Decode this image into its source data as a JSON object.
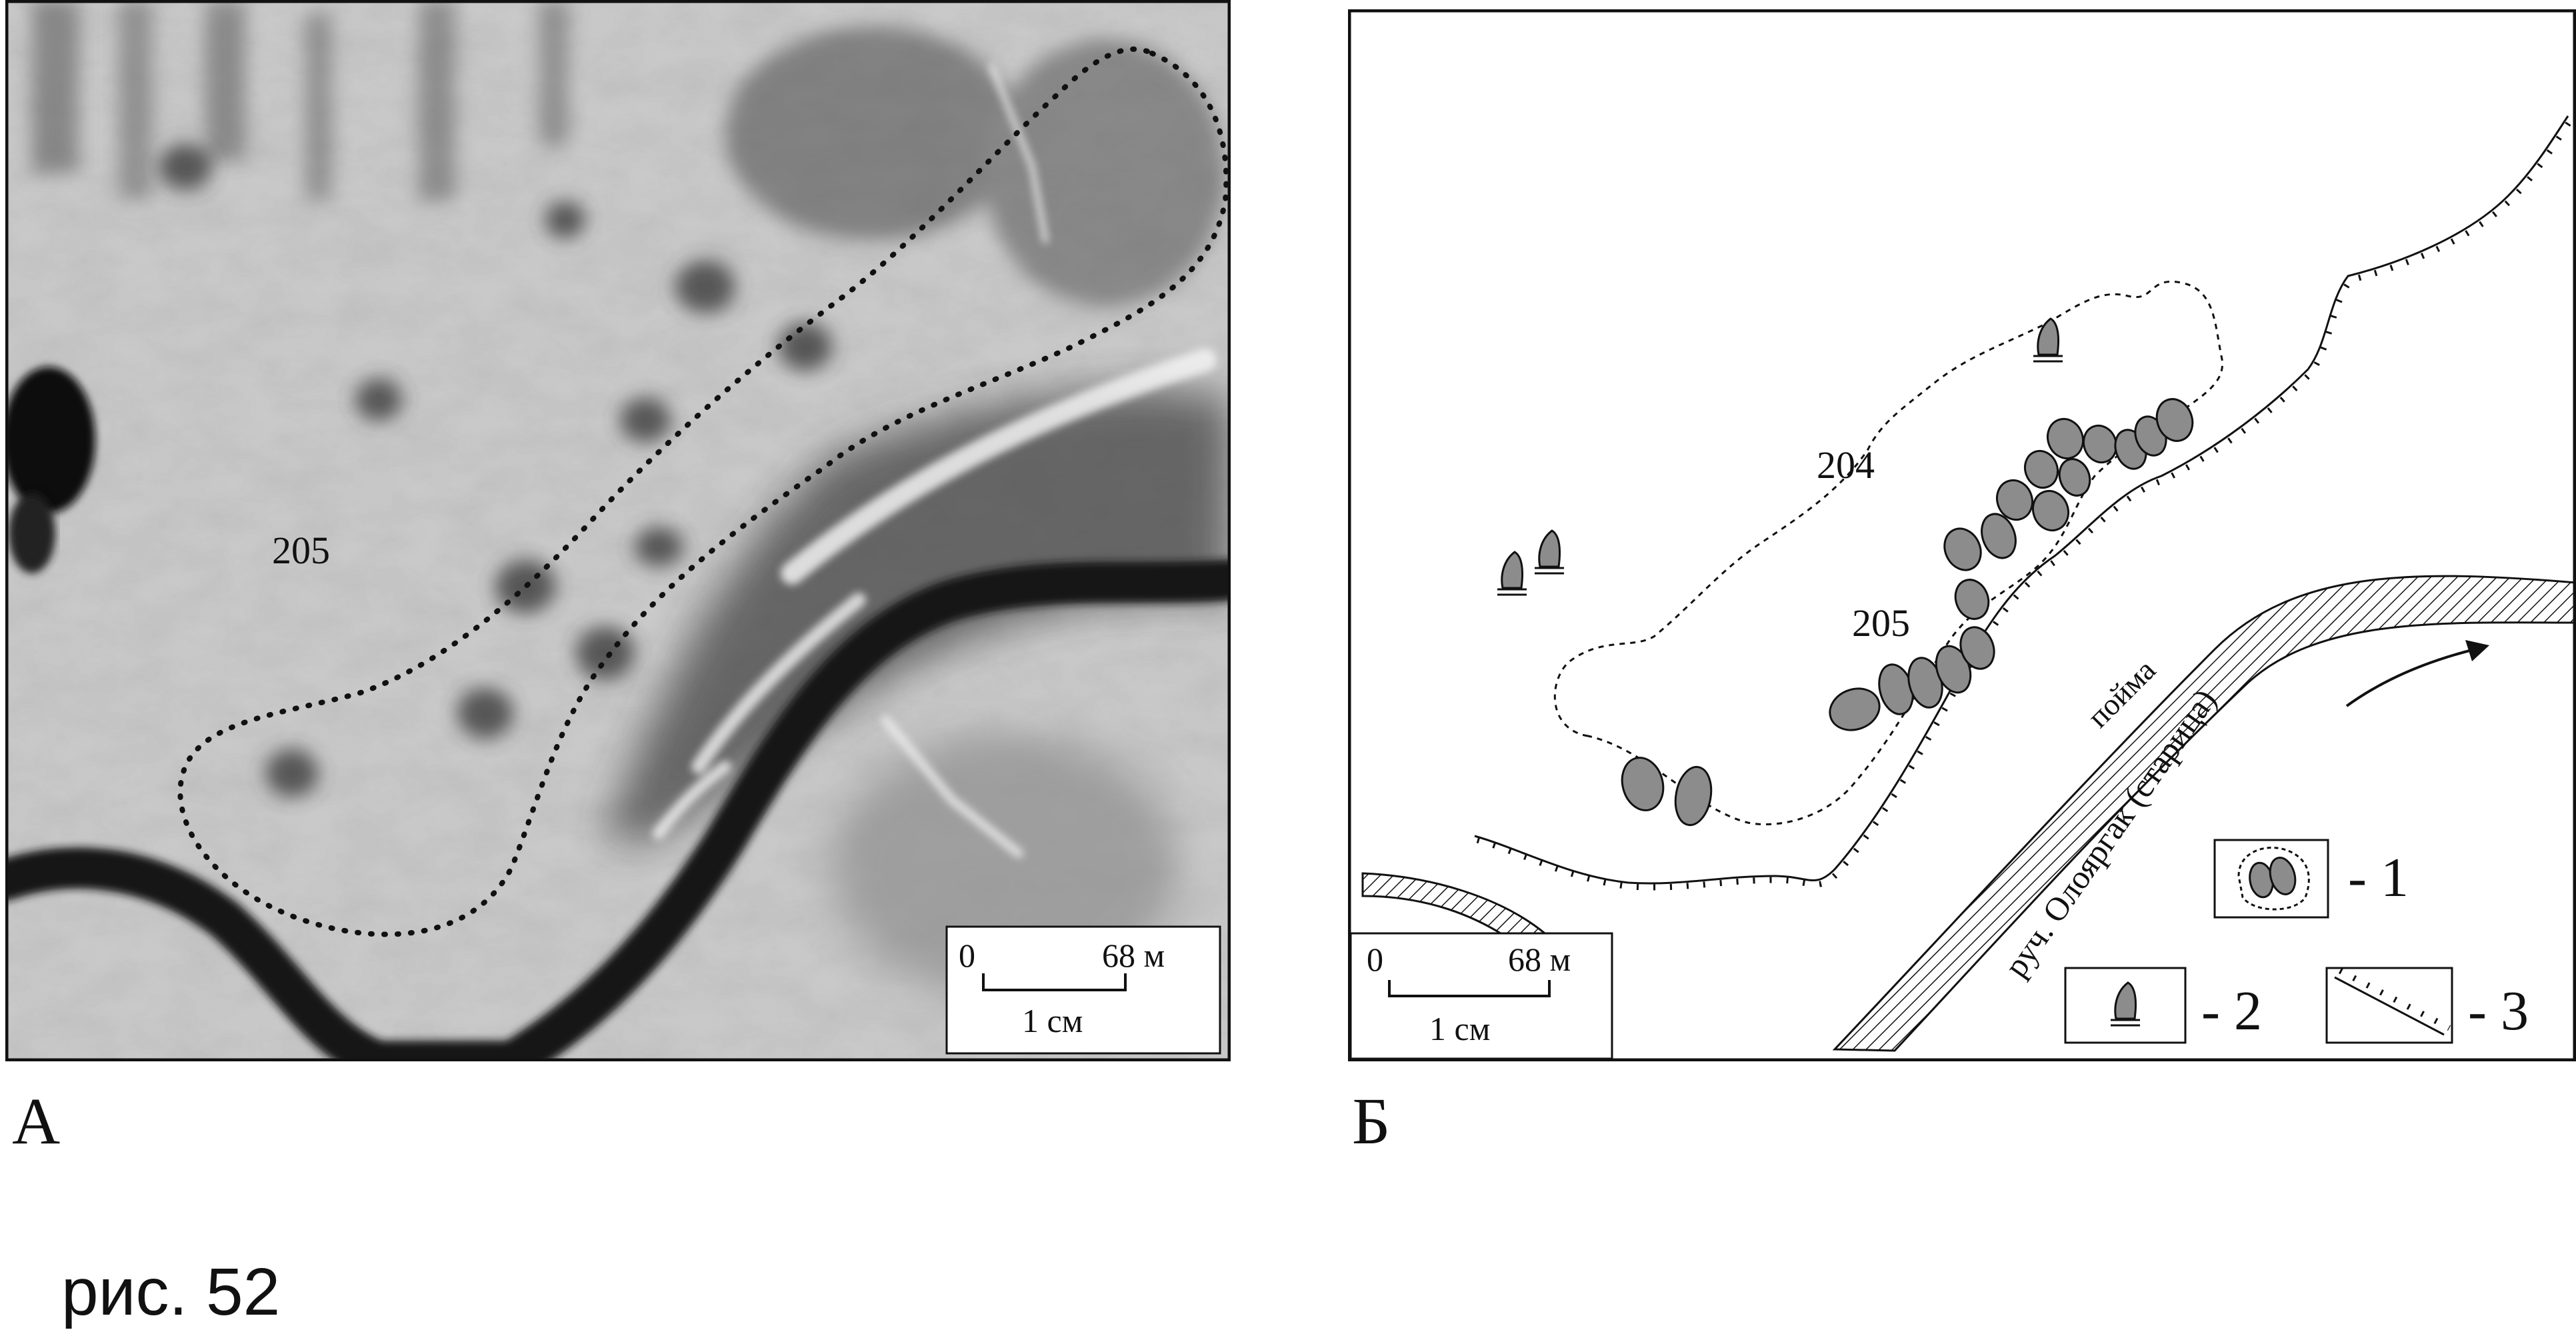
{
  "figure": {
    "caption": "рис. 52"
  },
  "panel_a": {
    "letter": "А",
    "site_label": "205",
    "scale": {
      "start": "0",
      "end": "68 м",
      "unit": "1 см"
    }
  },
  "panel_b": {
    "letter": "Б",
    "site_labels": [
      "204",
      "205"
    ],
    "floodplain_label": "пойма",
    "stream_label": "руч. Олояргак (старица)",
    "scale": {
      "start": "0",
      "end": "68 м",
      "unit": "1 см"
    },
    "legend": [
      {
        "symbol": "pit-cluster-icon",
        "text": "- 1"
      },
      {
        "symbol": "stone-marker-icon",
        "text": "- 2"
      },
      {
        "symbol": "terrace-edge-icon",
        "text": "- 3"
      }
    ]
  },
  "colors": {
    "background": "#ffffff",
    "ink": "#111111",
    "pit_fill": "#8c8c8c",
    "photo_dark": "#1f1f1f",
    "photo_mid": "#8a8a8a",
    "photo_light": "#d4d4d4"
  }
}
